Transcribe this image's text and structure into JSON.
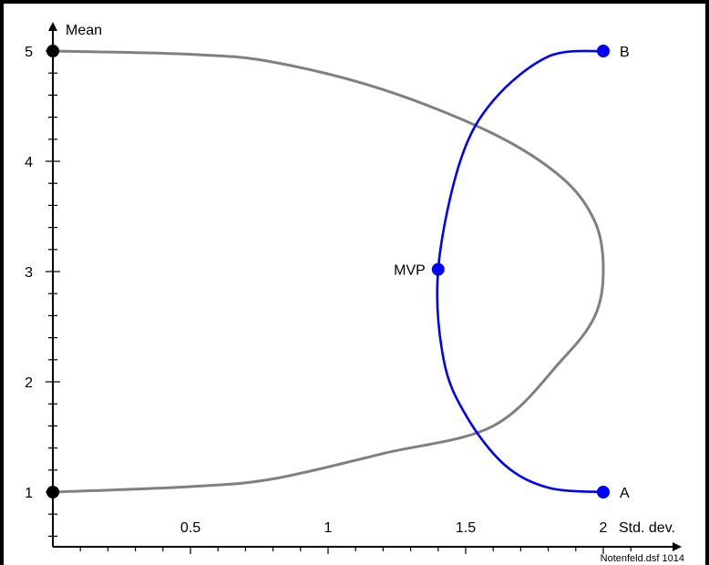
{
  "chart_data": {
    "type": "line",
    "title": "",
    "xlabel": "Std. dev.",
    "ylabel": "Mean",
    "xlim": [
      0,
      2.2
    ],
    "ylim": [
      0.55,
      5.35
    ],
    "grid": false,
    "x_ticks": [
      0.5,
      1,
      1.5,
      2
    ],
    "y_ticks": [
      1,
      2,
      3,
      4,
      5
    ],
    "x_tick_labels": [
      "0.5",
      "1",
      "1.5",
      "2"
    ],
    "y_tick_labels": [
      "1",
      "2",
      "3",
      "4",
      "5"
    ],
    "series": [
      {
        "color": "#808080",
        "x": [
          0,
          0.5,
          0.8,
          1.2,
          1.6,
          1.85,
          1.97,
          2.0,
          1.97,
          1.85,
          1.6,
          1.2,
          0.8,
          0.5,
          0
        ],
        "y": [
          5,
          4.97,
          4.9,
          4.65,
          4.25,
          3.85,
          3.45,
          3.02,
          2.6,
          2.2,
          1.6,
          1.35,
          1.12,
          1.05,
          1
        ]
      },
      {
        "color": "#0000ff",
        "x": [
          2.0,
          1.8,
          1.6,
          1.48,
          1.4,
          1.42,
          1.5,
          1.64,
          1.8,
          2.0
        ],
        "y": [
          5,
          4.95,
          4.55,
          4.0,
          3.02,
          2.2,
          1.7,
          1.25,
          1.04,
          1
        ]
      }
    ],
    "points": [
      {
        "label": "",
        "x": 0,
        "y": 5,
        "color": "#000000"
      },
      {
        "label": "",
        "x": 0,
        "y": 1,
        "color": "#000000"
      },
      {
        "label": "B",
        "x": 2,
        "y": 5,
        "color": "#0000ff"
      },
      {
        "label": "MVP",
        "x": 1.4,
        "y": 3.02,
        "color": "#0000ff"
      },
      {
        "label": "A",
        "x": 2,
        "y": 1,
        "color": "#0000ff"
      }
    ],
    "annotations": [
      "Notenfeld.dsf 1014"
    ]
  }
}
